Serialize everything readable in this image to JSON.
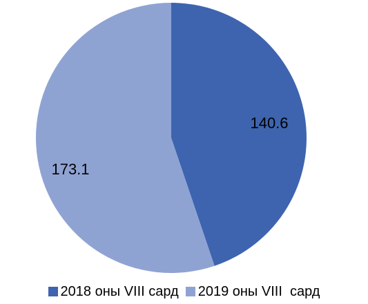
{
  "chart_data": {
    "type": "pie",
    "title": "",
    "slices": [
      {
        "label": "2018 оны VIII сард",
        "value": 140.6,
        "color": "#3E64AF"
      },
      {
        "label": "2019 оны VIII  сард",
        "value": 173.1,
        "color": "#8FA3D3"
      }
    ],
    "data_labels": [
      "140.6",
      "173.1"
    ],
    "legend_position": "bottom"
  }
}
